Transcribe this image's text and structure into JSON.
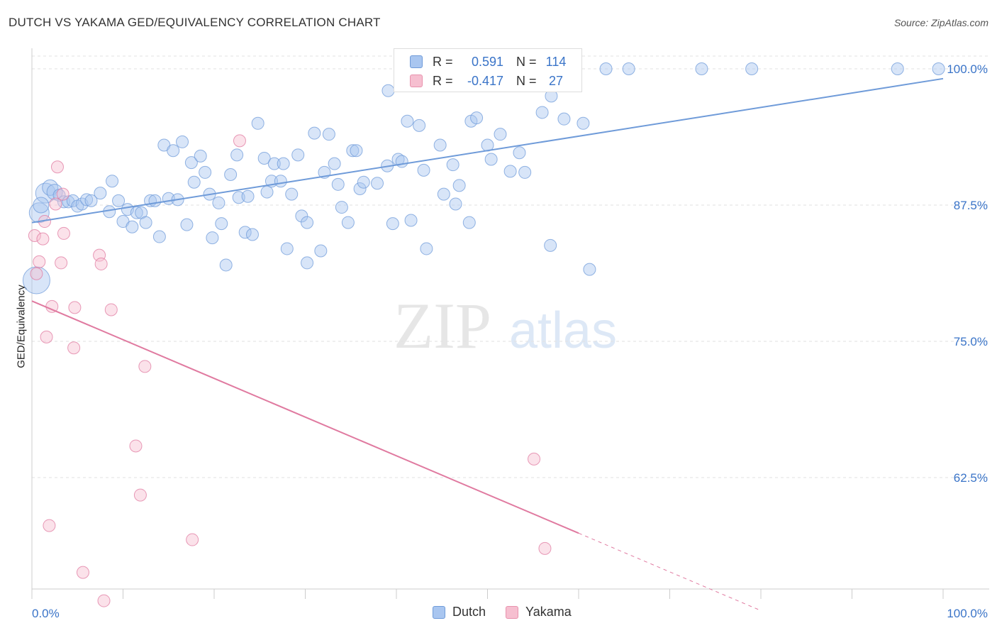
{
  "title": "DUTCH VS YAKAMA GED/EQUIVALENCY CORRELATION CHART",
  "source": "Source: ZipAtlas.com",
  "watermark": {
    "zip": "ZIP",
    "atlas": "atlas"
  },
  "stats": [
    {
      "r_label": "R =",
      "r_value": "0.591",
      "n_label": "N =",
      "n_value": "114",
      "color": "#a9c6f0",
      "border": "#6f9bd9"
    },
    {
      "r_label": "R =",
      "r_value": "-0.417",
      "n_label": "N =",
      "n_value": "27",
      "color": "#f6bfd0",
      "border": "#e892ad"
    }
  ],
  "legend": [
    {
      "label": "Dutch",
      "color": "#a9c6f0",
      "border": "#6f9bd9"
    },
    {
      "label": "Yakama",
      "color": "#f6bfd0",
      "border": "#e892ad"
    }
  ],
  "chart_data": {
    "type": "scatter",
    "title": "DUTCH VS YAKAMA GED/EQUIVALENCY CORRELATION CHART",
    "xlabel": "",
    "ylabel": "GED/Equivalency",
    "xlim": [
      0,
      100
    ],
    "ylim": [
      50,
      101
    ],
    "x_tick_labels": [
      "0.0%",
      "100.0%"
    ],
    "y_ticks": [
      62.5,
      75.0,
      87.5,
      100.0
    ],
    "y_tick_labels": [
      "62.5%",
      "75.0%",
      "87.5%",
      "100.0%"
    ],
    "grid": true,
    "legend_position": "bottom-center",
    "series": [
      {
        "name": "Dutch",
        "color": "#6f9bd9",
        "fill": "#a9c6f0",
        "trend": {
          "x": [
            0,
            100
          ],
          "y": [
            85.9,
            99.1
          ]
        },
        "points": [
          [
            1.5,
            88.6,
            3
          ],
          [
            2,
            89.1,
            2
          ],
          [
            2.5,
            88.7,
            2
          ],
          [
            3,
            88.4,
            1
          ],
          [
            3.5,
            87.8,
            1
          ],
          [
            4,
            87.8,
            1
          ],
          [
            4.5,
            87.9,
            1
          ],
          [
            5,
            87.4,
            1
          ],
          [
            5.5,
            87.6,
            1
          ],
          [
            6,
            88.0,
            1
          ],
          [
            6.5,
            87.9,
            1
          ],
          [
            7.5,
            88.6,
            1
          ],
          [
            8.5,
            86.9,
            1
          ],
          [
            8.8,
            89.7,
            1
          ],
          [
            9.5,
            87.9,
            1
          ],
          [
            10,
            86.0,
            1
          ],
          [
            10.5,
            87.1,
            1
          ],
          [
            11,
            85.5,
            1
          ],
          [
            11.5,
            86.8,
            1
          ],
          [
            12,
            86.8,
            1
          ],
          [
            12.5,
            85.9,
            1
          ],
          [
            13,
            87.9,
            1
          ],
          [
            13.5,
            87.9,
            1
          ],
          [
            14,
            84.6,
            1
          ],
          [
            14.5,
            93.0,
            1
          ],
          [
            15,
            88.1,
            1
          ],
          [
            15.5,
            92.5,
            1
          ],
          [
            16,
            88.0,
            1
          ],
          [
            16.5,
            93.3,
            1
          ],
          [
            17,
            85.7,
            1
          ],
          [
            17.5,
            91.4,
            1
          ],
          [
            17.8,
            89.6,
            1
          ],
          [
            18.5,
            92.0,
            1
          ],
          [
            19,
            90.5,
            1
          ],
          [
            19.5,
            88.5,
            1
          ],
          [
            19.8,
            84.5,
            1
          ],
          [
            20.5,
            87.7,
            1
          ],
          [
            20.8,
            85.8,
            1
          ],
          [
            21.3,
            82.0,
            1
          ],
          [
            21.8,
            90.3,
            1
          ],
          [
            22.5,
            92.1,
            1
          ],
          [
            22.7,
            88.2,
            1
          ],
          [
            23.4,
            85.0,
            1
          ],
          [
            23.7,
            88.3,
            1
          ],
          [
            24.2,
            84.8,
            1
          ],
          [
            24.8,
            95.0,
            1
          ],
          [
            25.5,
            91.8,
            1
          ],
          [
            25.8,
            88.7,
            1
          ],
          [
            26.3,
            89.7,
            1
          ],
          [
            26.6,
            91.3,
            1
          ],
          [
            27.3,
            89.7,
            1
          ],
          [
            27.6,
            91.3,
            1
          ],
          [
            28,
            83.5,
            1
          ],
          [
            28.5,
            88.5,
            1
          ],
          [
            29.2,
            92.1,
            1
          ],
          [
            29.6,
            86.5,
            1
          ],
          [
            30.2,
            85.9,
            1
          ],
          [
            30.2,
            82.2,
            1
          ],
          [
            31.0,
            94.1,
            1
          ],
          [
            31.7,
            83.3,
            1
          ],
          [
            32.1,
            90.5,
            1
          ],
          [
            32.6,
            94.0,
            1
          ],
          [
            33.2,
            91.3,
            1
          ],
          [
            33.6,
            89.4,
            1
          ],
          [
            34.0,
            87.3,
            1
          ],
          [
            34.7,
            85.9,
            1
          ],
          [
            35.2,
            92.5,
            1
          ],
          [
            35.6,
            92.5,
            1
          ],
          [
            36.0,
            89.0,
            1
          ],
          [
            36.4,
            89.6,
            1
          ],
          [
            37.9,
            89.5,
            1
          ],
          [
            39.0,
            91.1,
            1
          ],
          [
            39.1,
            98.0,
            1
          ],
          [
            39.6,
            85.8,
            1
          ],
          [
            40.2,
            91.7,
            1
          ],
          [
            40.6,
            91.5,
            1
          ],
          [
            41.2,
            95.2,
            1
          ],
          [
            41.6,
            86.1,
            1
          ],
          [
            42.5,
            94.8,
            1
          ],
          [
            43.0,
            90.7,
            1
          ],
          [
            43.3,
            83.5,
            1
          ],
          [
            44.8,
            93.0,
            1
          ],
          [
            45.2,
            88.5,
            1
          ],
          [
            46.2,
            91.2,
            1
          ],
          [
            46.5,
            87.6,
            1
          ],
          [
            46.9,
            89.3,
            1
          ],
          [
            48.0,
            85.9,
            1
          ],
          [
            48.2,
            95.2,
            1
          ],
          [
            48.8,
            95.5,
            1
          ],
          [
            50.0,
            93.0,
            1
          ],
          [
            50.4,
            91.7,
            1
          ],
          [
            51.4,
            94.0,
            1
          ],
          [
            52.5,
            90.6,
            1
          ],
          [
            52.7,
            98.7,
            1
          ],
          [
            53.5,
            92.3,
            1
          ],
          [
            54.1,
            90.5,
            1
          ],
          [
            56.0,
            96.0,
            1
          ],
          [
            57.0,
            97.5,
            1
          ],
          [
            56.9,
            83.8,
            1
          ],
          [
            58.4,
            95.4,
            1
          ],
          [
            60.5,
            95.0,
            1
          ],
          [
            61.2,
            81.6,
            1
          ],
          [
            63.0,
            100.0,
            1
          ],
          [
            65.5,
            100.0,
            1
          ],
          [
            73.5,
            100.0,
            1
          ],
          [
            79.0,
            100.0,
            1
          ],
          [
            95.0,
            100.0,
            1
          ],
          [
            99.5,
            100.0,
            1
          ],
          [
            0.8,
            86.8,
            3
          ],
          [
            0.5,
            80.6,
            4
          ],
          [
            1.0,
            87.5,
            2
          ]
        ]
      },
      {
        "name": "Yakama",
        "color": "#e07aa0",
        "fill": "#f6bfd0",
        "trend": {
          "x": [
            0,
            60
          ],
          "y": [
            78.7,
            57.4
          ]
        },
        "trend_dashed": {
          "x": [
            60,
            80
          ],
          "y": [
            57.4,
            50.3
          ]
        },
        "points": [
          [
            0.3,
            84.7,
            1
          ],
          [
            0.5,
            81.2,
            1
          ],
          [
            0.8,
            82.3,
            1
          ],
          [
            1.2,
            84.4,
            1
          ],
          [
            1.4,
            86.0,
            1
          ],
          [
            1.6,
            75.4,
            1
          ],
          [
            1.9,
            58.1,
            1
          ],
          [
            2.2,
            78.2,
            1
          ],
          [
            2.6,
            87.6,
            1
          ],
          [
            2.8,
            91.0,
            1
          ],
          [
            3.2,
            82.2,
            1
          ],
          [
            3.4,
            88.5,
            1
          ],
          [
            3.5,
            84.9,
            1
          ],
          [
            4.6,
            74.4,
            1
          ],
          [
            4.7,
            78.1,
            1
          ],
          [
            5.6,
            53.8,
            1
          ],
          [
            7.4,
            82.9,
            1
          ],
          [
            7.6,
            82.1,
            1
          ],
          [
            7.9,
            51.2,
            1
          ],
          [
            8.7,
            77.9,
            1
          ],
          [
            11.4,
            65.4,
            1
          ],
          [
            11.9,
            60.9,
            1
          ],
          [
            12.4,
            72.7,
            1
          ],
          [
            17.6,
            56.8,
            1
          ],
          [
            22.8,
            93.4,
            1
          ],
          [
            55.1,
            64.2,
            1
          ],
          [
            56.3,
            56.0,
            1
          ]
        ]
      }
    ]
  }
}
